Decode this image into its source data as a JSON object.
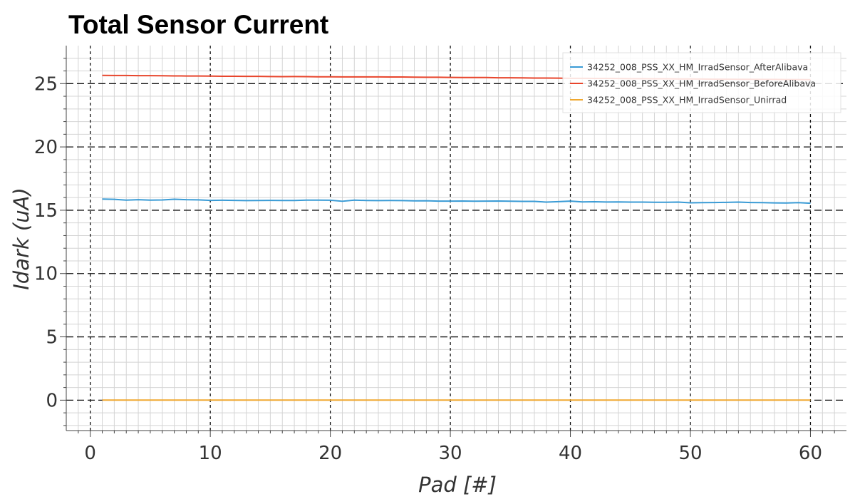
{
  "chart_data": {
    "type": "line",
    "title": "Total Sensor Current",
    "xlabel": "Pad [#]",
    "ylabel": "Idark (uA)",
    "xlim": [
      -2,
      63
    ],
    "ylim": [
      -2.4,
      28
    ],
    "xticks": [
      0,
      10,
      20,
      30,
      40,
      50,
      60
    ],
    "yticks": [
      0,
      5,
      10,
      15,
      20,
      25
    ],
    "grid": true,
    "legend_position": "top-right",
    "x": [
      1,
      2,
      3,
      4,
      5,
      6,
      7,
      8,
      9,
      10,
      11,
      12,
      13,
      14,
      15,
      16,
      17,
      18,
      19,
      20,
      21,
      22,
      23,
      24,
      25,
      26,
      27,
      28,
      29,
      30,
      31,
      32,
      33,
      34,
      35,
      36,
      37,
      38,
      39,
      40,
      41,
      42,
      43,
      44,
      45,
      46,
      47,
      48,
      49,
      50,
      51,
      52,
      53,
      54,
      55,
      56,
      57,
      58,
      59,
      60
    ],
    "series": [
      {
        "name": "34252_008_PSS_XX_HM_IrradSensor_AfterAlibava",
        "color": "#3a9bd5",
        "values": [
          15.88,
          15.86,
          15.8,
          15.83,
          15.8,
          15.81,
          15.87,
          15.83,
          15.82,
          15.78,
          15.79,
          15.78,
          15.76,
          15.77,
          15.78,
          15.77,
          15.77,
          15.8,
          15.8,
          15.79,
          15.71,
          15.8,
          15.77,
          15.76,
          15.77,
          15.76,
          15.74,
          15.75,
          15.72,
          15.72,
          15.73,
          15.71,
          15.72,
          15.73,
          15.71,
          15.7,
          15.7,
          15.64,
          15.68,
          15.72,
          15.66,
          15.67,
          15.65,
          15.66,
          15.64,
          15.64,
          15.63,
          15.63,
          15.64,
          15.59,
          15.6,
          15.61,
          15.62,
          15.64,
          15.61,
          15.6,
          15.58,
          15.57,
          15.6,
          15.55
        ]
      },
      {
        "name": "34252_008_PSS_XX_HM_IrradSensor_BeforeAlibava",
        "color": "#e8452c",
        "values": [
          25.65,
          25.64,
          25.64,
          25.63,
          25.63,
          25.62,
          25.61,
          25.6,
          25.6,
          25.59,
          25.58,
          25.58,
          25.57,
          25.57,
          25.56,
          25.55,
          25.56,
          25.55,
          25.54,
          25.54,
          25.53,
          25.53,
          25.53,
          25.53,
          25.52,
          25.52,
          25.51,
          25.5,
          25.5,
          25.49,
          25.48,
          25.48,
          25.48,
          25.46,
          25.46,
          25.45,
          25.44,
          25.44,
          25.43,
          25.42,
          25.42,
          25.41,
          25.41,
          25.4,
          25.39,
          25.39,
          25.38,
          25.38,
          25.37,
          25.37,
          25.36,
          25.35,
          25.35,
          25.34,
          25.34,
          25.33,
          25.33,
          25.32,
          25.32,
          25.31
        ]
      },
      {
        "name": "34252_008_PSS_XX_HM_IrradSensor_Unirrad",
        "color": "#f0a830",
        "values": [
          0.01,
          0.01,
          0.01,
          0.01,
          0.01,
          0.01,
          0.01,
          0.01,
          0.01,
          0.01,
          0.01,
          0.01,
          0.01,
          0.01,
          0.01,
          0.01,
          0.01,
          0.01,
          0.01,
          0.01,
          0.01,
          0.01,
          0.01,
          0.01,
          0.01,
          0.01,
          0.01,
          0.01,
          0.01,
          0.01,
          0.01,
          0.01,
          0.01,
          0.01,
          0.01,
          0.01,
          0.01,
          0.01,
          0.01,
          0.01,
          0.01,
          0.01,
          0.01,
          0.01,
          0.01,
          0.01,
          0.01,
          0.01,
          0.01,
          0.01,
          0.01,
          0.01,
          0.01,
          0.01,
          0.01,
          0.01,
          0.01,
          0.01,
          0.01,
          0.01
        ]
      }
    ]
  }
}
